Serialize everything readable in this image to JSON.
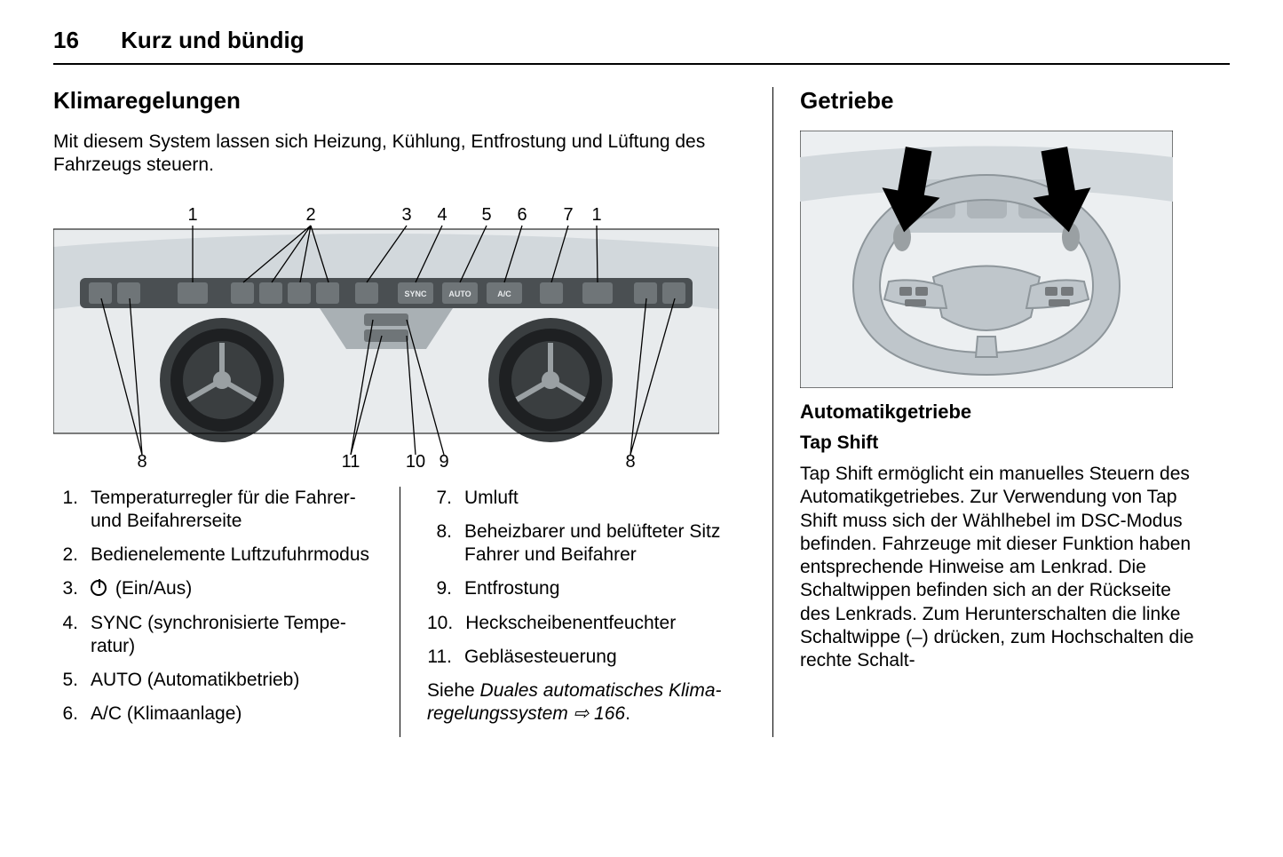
{
  "page": {
    "number": "16",
    "running_title": "Kurz und bündig"
  },
  "left": {
    "heading": "Klimaregelungen",
    "intro": "Mit diesem System lassen sich Heizung, Kühlung, Entfrostung und Lüftung des Fahrzeugs steuern.",
    "figure": {
      "callout_top": [
        "1",
        "2",
        "3",
        "4",
        "5",
        "6",
        "7",
        "1"
      ],
      "callout_bottom": [
        "8",
        "11",
        "10",
        "9",
        "8"
      ],
      "panel_labels": [
        "SYNC",
        "AUTO",
        "A/C"
      ],
      "colors": {
        "bg": "#e8ebed",
        "panel_dark": "#4a4f52",
        "panel_mid": "#a9b0b4",
        "line": "#000000",
        "button": "#6f7578",
        "vent_ring": "#3a3e40",
        "vent_spoke": "#9aa0a3"
      }
    },
    "items": [
      {
        "n": "1.",
        "t": "Temperaturregler für die Fahrer- und Beifahrerseite"
      },
      {
        "n": "2.",
        "t": "Bedienelemente Luftzufuhr­modus"
      },
      {
        "n": "3.",
        "t": "(Ein/Aus)",
        "power_icon": true
      },
      {
        "n": "4.",
        "t": "SYNC (synchronisierte Tempe­ratur)"
      },
      {
        "n": "5.",
        "t": "AUTO (Automatikbetrieb)"
      },
      {
        "n": "6.",
        "t": "A/C (Klimaanlage)"
      },
      {
        "n": "7.",
        "t": "Umluft"
      },
      {
        "n": "8.",
        "t": "Beheizbarer und belüfteter Sitz Fahrer und Beifahrer"
      },
      {
        "n": "9.",
        "t": "Entfrostung"
      },
      {
        "n": "10.",
        "t": "Heckscheibenentfeuchter"
      },
      {
        "n": "11.",
        "t": "Gebläsesteuerung"
      }
    ],
    "seealso_pre": "Siehe ",
    "seealso_ital": "Duales automatisches Klima­regelungssystem",
    "seealso_arrow": "⇨",
    "seealso_page": "166",
    "seealso_post": "."
  },
  "right": {
    "heading": "Getriebe",
    "figure": {
      "colors": {
        "bg": "#eceff1",
        "wheel": "#bfc6cb",
        "wheel_dark": "#8e969b",
        "arrow": "#000000",
        "dash": "#d2d8dc",
        "button": "#75797c"
      }
    },
    "sub": "Automatikgetriebe",
    "subsub": "Tap Shift",
    "para": "Tap Shift ermöglicht ein manuelles Steuern des Automatikgetriebes. Zur Verwendung von Tap Shift muss sich der Wählhebel im DSC-Modus befinden. Fahrzeuge mit dieser Funktion haben entsprechende Hinweise am Lenkrad. Die Schalt­wippen befinden sich an der Rückseite des Lenkrads. Zum Herunterschalten die linke Schalt­wippe (–) drücken, zum Hochschalten die rechte Schalt-"
  }
}
